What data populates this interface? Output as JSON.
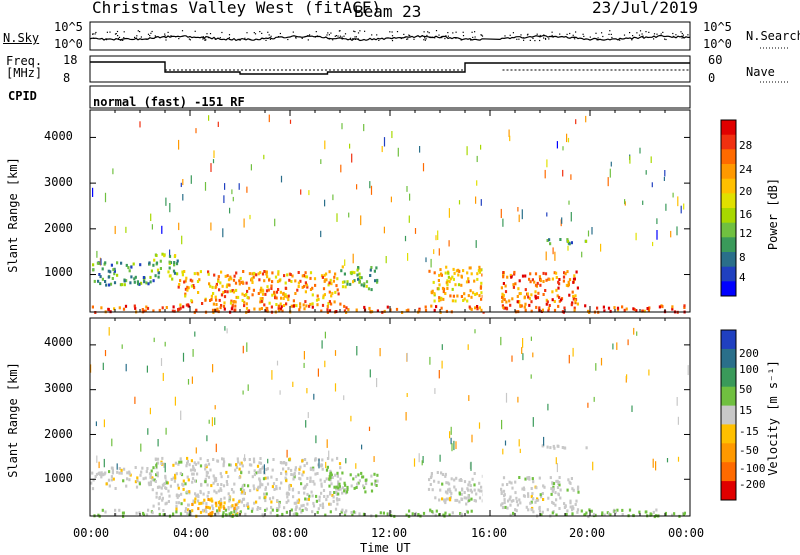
{
  "header": {
    "station": "Christmas Valley West (fitACF)",
    "beam": "Beam 23",
    "date": "23/Jul/2019"
  },
  "top_panel": {
    "left_label": "N.Sky",
    "left_ticks": [
      "10^5",
      "10^0"
    ],
    "right_ticks": [
      "10^5",
      "10^0"
    ],
    "right_label": "N.Search"
  },
  "freq_panel": {
    "left_label_1": "Freq.",
    "left_label_2": "[MHz]",
    "left_ticks": [
      "18",
      "8"
    ],
    "right_ticks": [
      "60",
      "0"
    ],
    "right_label": "Nave"
  },
  "cpid_panel": {
    "label": "CPID",
    "text": "normal (fast) -151 RF"
  },
  "range_axis": {
    "label": "Slant Range [km]",
    "ticks": [
      "4000",
      "3000",
      "2000",
      "1000"
    ]
  },
  "x_axis": {
    "label": "Time UT",
    "ticks": [
      "00:00",
      "04:00",
      "08:00",
      "12:00",
      "16:00",
      "20:00",
      "00:00"
    ]
  },
  "power_scale": {
    "label": "Power [dB]",
    "ticks": [
      "28",
      "24",
      "20",
      "16",
      "12",
      "8",
      "4"
    ],
    "colors": [
      "#e00000",
      "#f03010",
      "#ff6a00",
      "#ff9900",
      "#ffc000",
      "#e0e000",
      "#a8d800",
      "#70c040",
      "#3a9a5a",
      "#2a6f8a",
      "#2040c0",
      "#0000ff"
    ]
  },
  "velocity_scale": {
    "label": "Velocity [m s⁻¹]",
    "ticks": [
      "200",
      "100",
      "50",
      "15",
      "-15",
      "-50",
      "-100",
      "-200"
    ],
    "colors": [
      "#2040c0",
      "#2a6f8a",
      "#3a9a5a",
      "#70c040",
      "#c8c8c8",
      "#ffc000",
      "#ff9900",
      "#ff6a00",
      "#e00000"
    ]
  },
  "chart_data": {
    "type": "heatmap",
    "title": "Christmas Valley West (fitACF) Beam 23",
    "xlabel": "Time UT",
    "ylabel": "Slant Range [km]",
    "xlim": [
      "00:00",
      "24:00"
    ],
    "ylim": [
      180,
      4600
    ],
    "data_gap_ut_hours": [
      15.7,
      16.4
    ],
    "panels": [
      {
        "name": "Power [dB]",
        "scale": [
          0,
          30
        ],
        "echo_regions": [
          {
            "t_start": 0.0,
            "t_end": 2.5,
            "range_min": 800,
            "range_max": 1300,
            "value": 8
          },
          {
            "t_start": 2.5,
            "t_end": 3.5,
            "range_min": 900,
            "range_max": 1500,
            "value": 12
          },
          {
            "t_start": 3.5,
            "t_end": 10.0,
            "range_min": 350,
            "range_max": 1100,
            "value": 22
          },
          {
            "t_start": 10.0,
            "t_end": 11.5,
            "range_min": 700,
            "range_max": 1200,
            "value": 12
          },
          {
            "t_start": 13.5,
            "t_end": 15.7,
            "range_min": 450,
            "range_max": 1200,
            "value": 20
          },
          {
            "t_start": 16.4,
            "t_end": 19.5,
            "range_min": 350,
            "range_max": 1100,
            "value": 24
          },
          {
            "t_start": 18.0,
            "t_end": 20.2,
            "range_min": 1700,
            "range_max": 1800,
            "value": 8
          },
          {
            "t_start": 0.0,
            "t_end": 24.0,
            "range_min": 200,
            "range_max": 350,
            "value": 26
          }
        ]
      },
      {
        "name": "Velocity [m s-1]",
        "scale": [
          -200,
          200
        ],
        "echo_regions": [
          {
            "t_start": 0.0,
            "t_end": 2.5,
            "range_min": 800,
            "range_max": 1300,
            "value": 0
          },
          {
            "t_start": 2.5,
            "t_end": 10.0,
            "range_min": 350,
            "range_max": 1500,
            "value": 0
          },
          {
            "t_start": 4.0,
            "t_end": 6.0,
            "range_min": 200,
            "range_max": 600,
            "value": -60
          },
          {
            "t_start": 9.5,
            "t_end": 11.5,
            "range_min": 700,
            "range_max": 1200,
            "value": 40
          },
          {
            "t_start": 13.5,
            "t_end": 15.7,
            "range_min": 450,
            "range_max": 1200,
            "value": 0
          },
          {
            "t_start": 16.4,
            "t_end": 19.5,
            "range_min": 350,
            "range_max": 1100,
            "value": 0
          },
          {
            "t_start": 18.0,
            "t_end": 20.2,
            "range_min": 1700,
            "range_max": 1800,
            "value": 0
          },
          {
            "t_start": 0.0,
            "t_end": 24.0,
            "range_min": 200,
            "range_max": 350,
            "value": 30
          }
        ]
      }
    ]
  }
}
